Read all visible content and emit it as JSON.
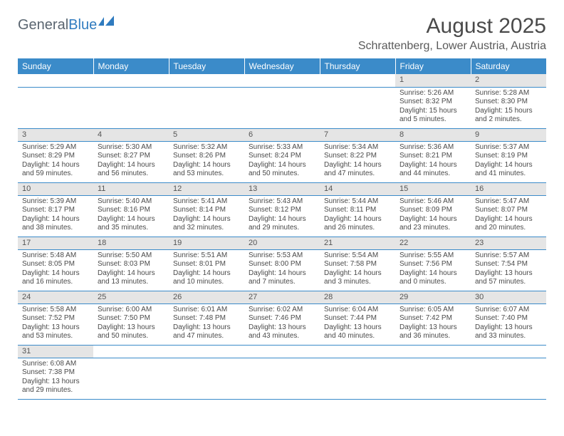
{
  "logo": {
    "general": "General",
    "blue": "Blue"
  },
  "title": "August 2025",
  "location": "Schrattenberg, Lower Austria, Austria",
  "colors": {
    "header_bg": "#3b8bc9",
    "header_text": "#ffffff",
    "daynum_bg": "#e5e5e5",
    "rule": "#3b8bc9",
    "logo_general": "#5a6570",
    "logo_blue": "#2f7bbf"
  },
  "weekdays": [
    "Sunday",
    "Monday",
    "Tuesday",
    "Wednesday",
    "Thursday",
    "Friday",
    "Saturday"
  ],
  "cells": {
    "1": {
      "sunrise": "5:26 AM",
      "sunset": "8:32 PM",
      "daylight": "15 hours and 5 minutes."
    },
    "2": {
      "sunrise": "5:28 AM",
      "sunset": "8:30 PM",
      "daylight": "15 hours and 2 minutes."
    },
    "3": {
      "sunrise": "5:29 AM",
      "sunset": "8:29 PM",
      "daylight": "14 hours and 59 minutes."
    },
    "4": {
      "sunrise": "5:30 AM",
      "sunset": "8:27 PM",
      "daylight": "14 hours and 56 minutes."
    },
    "5": {
      "sunrise": "5:32 AM",
      "sunset": "8:26 PM",
      "daylight": "14 hours and 53 minutes."
    },
    "6": {
      "sunrise": "5:33 AM",
      "sunset": "8:24 PM",
      "daylight": "14 hours and 50 minutes."
    },
    "7": {
      "sunrise": "5:34 AM",
      "sunset": "8:22 PM",
      "daylight": "14 hours and 47 minutes."
    },
    "8": {
      "sunrise": "5:36 AM",
      "sunset": "8:21 PM",
      "daylight": "14 hours and 44 minutes."
    },
    "9": {
      "sunrise": "5:37 AM",
      "sunset": "8:19 PM",
      "daylight": "14 hours and 41 minutes."
    },
    "10": {
      "sunrise": "5:39 AM",
      "sunset": "8:17 PM",
      "daylight": "14 hours and 38 minutes."
    },
    "11": {
      "sunrise": "5:40 AM",
      "sunset": "8:16 PM",
      "daylight": "14 hours and 35 minutes."
    },
    "12": {
      "sunrise": "5:41 AM",
      "sunset": "8:14 PM",
      "daylight": "14 hours and 32 minutes."
    },
    "13": {
      "sunrise": "5:43 AM",
      "sunset": "8:12 PM",
      "daylight": "14 hours and 29 minutes."
    },
    "14": {
      "sunrise": "5:44 AM",
      "sunset": "8:11 PM",
      "daylight": "14 hours and 26 minutes."
    },
    "15": {
      "sunrise": "5:46 AM",
      "sunset": "8:09 PM",
      "daylight": "14 hours and 23 minutes."
    },
    "16": {
      "sunrise": "5:47 AM",
      "sunset": "8:07 PM",
      "daylight": "14 hours and 20 minutes."
    },
    "17": {
      "sunrise": "5:48 AM",
      "sunset": "8:05 PM",
      "daylight": "14 hours and 16 minutes."
    },
    "18": {
      "sunrise": "5:50 AM",
      "sunset": "8:03 PM",
      "daylight": "14 hours and 13 minutes."
    },
    "19": {
      "sunrise": "5:51 AM",
      "sunset": "8:01 PM",
      "daylight": "14 hours and 10 minutes."
    },
    "20": {
      "sunrise": "5:53 AM",
      "sunset": "8:00 PM",
      "daylight": "14 hours and 7 minutes."
    },
    "21": {
      "sunrise": "5:54 AM",
      "sunset": "7:58 PM",
      "daylight": "14 hours and 3 minutes."
    },
    "22": {
      "sunrise": "5:55 AM",
      "sunset": "7:56 PM",
      "daylight": "14 hours and 0 minutes."
    },
    "23": {
      "sunrise": "5:57 AM",
      "sunset": "7:54 PM",
      "daylight": "13 hours and 57 minutes."
    },
    "24": {
      "sunrise": "5:58 AM",
      "sunset": "7:52 PM",
      "daylight": "13 hours and 53 minutes."
    },
    "25": {
      "sunrise": "6:00 AM",
      "sunset": "7:50 PM",
      "daylight": "13 hours and 50 minutes."
    },
    "26": {
      "sunrise": "6:01 AM",
      "sunset": "7:48 PM",
      "daylight": "13 hours and 47 minutes."
    },
    "27": {
      "sunrise": "6:02 AM",
      "sunset": "7:46 PM",
      "daylight": "13 hours and 43 minutes."
    },
    "28": {
      "sunrise": "6:04 AM",
      "sunset": "7:44 PM",
      "daylight": "13 hours and 40 minutes."
    },
    "29": {
      "sunrise": "6:05 AM",
      "sunset": "7:42 PM",
      "daylight": "13 hours and 36 minutes."
    },
    "30": {
      "sunrise": "6:07 AM",
      "sunset": "7:40 PM",
      "daylight": "13 hours and 33 minutes."
    },
    "31": {
      "sunrise": "6:08 AM",
      "sunset": "7:38 PM",
      "daylight": "13 hours and 29 minutes."
    }
  },
  "labels": {
    "sunrise": "Sunrise: ",
    "sunset": "Sunset: ",
    "daylight": "Daylight: "
  },
  "layout": {
    "first_day_column": 5,
    "days_in_month": 31,
    "rows": 6
  }
}
